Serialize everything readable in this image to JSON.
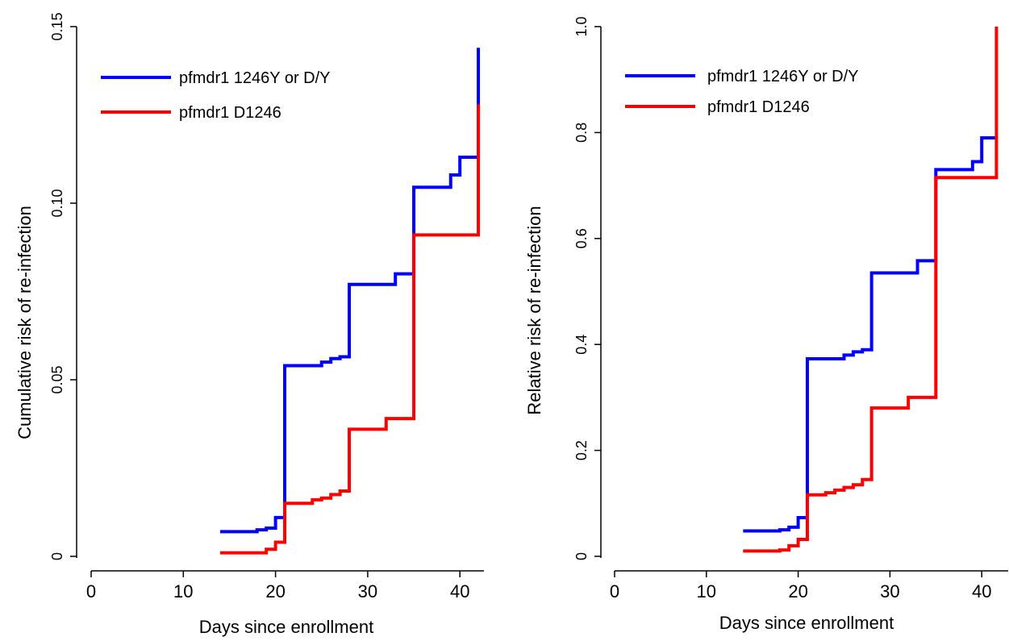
{
  "chart_data": [
    {
      "type": "line",
      "step": true,
      "xlabel": "Days since enrollment",
      "ylabel": "Cumulative risk of re-infection",
      "xlim": [
        0,
        42
      ],
      "ylim": [
        0,
        0.15
      ],
      "xticks": [
        0,
        10,
        20,
        30,
        40
      ],
      "yticks": [
        0,
        0.05,
        0.1,
        0.15
      ],
      "xtick_labels": [
        "0",
        "10",
        "20",
        "30",
        "40"
      ],
      "ytick_labels": [
        "0",
        "0.05",
        "0.10",
        "0.15"
      ],
      "grid": false,
      "legend_position": "top-left",
      "series": [
        {
          "name": "pfmdr1 1246Y or D/Y",
          "color": "#0000ff",
          "x": [
            14,
            18,
            19,
            20,
            21,
            25,
            26,
            27,
            28,
            33,
            35,
            39,
            40,
            42,
            42
          ],
          "y": [
            0.007,
            0.0075,
            0.008,
            0.011,
            0.054,
            0.055,
            0.056,
            0.0565,
            0.077,
            0.08,
            0.1045,
            0.108,
            0.113,
            0.113,
            0.144
          ]
        },
        {
          "name": "pfmdr1 D1246",
          "color": "#ff0000",
          "x": [
            14,
            19,
            20,
            21,
            24,
            25,
            26,
            27,
            28,
            32,
            35,
            42,
            42
          ],
          "y": [
            0.001,
            0.002,
            0.004,
            0.015,
            0.016,
            0.0165,
            0.0175,
            0.0185,
            0.036,
            0.039,
            0.091,
            0.091,
            0.128
          ]
        }
      ]
    },
    {
      "type": "line",
      "step": true,
      "xlabel": "Days since enrollment",
      "ylabel": "Relative risk of re-infection",
      "xlim": [
        0,
        42
      ],
      "ylim": [
        0,
        1.0
      ],
      "xticks": [
        0,
        10,
        20,
        30,
        40
      ],
      "yticks": [
        0,
        0.2,
        0.4,
        0.6,
        0.8,
        1.0
      ],
      "xtick_labels": [
        "0",
        "10",
        "20",
        "30",
        "40"
      ],
      "ytick_labels": [
        "0",
        "0.2",
        "0.4",
        "0.6",
        "0.8",
        "1.0"
      ],
      "grid": false,
      "legend_position": "top-left",
      "series": [
        {
          "name": "pfmdr1 1246Y or D/Y",
          "color": "#0000ff",
          "x": [
            14,
            18,
            19,
            20,
            21,
            25,
            26,
            27,
            28,
            33,
            35,
            39,
            40,
            41.6
          ],
          "y": [
            0.048,
            0.05,
            0.055,
            0.073,
            0.373,
            0.38,
            0.386,
            0.39,
            0.535,
            0.558,
            0.73,
            0.745,
            0.79,
            0.79
          ]
        },
        {
          "name": "pfmdr1 D1246",
          "color": "#ff0000",
          "x": [
            14,
            18,
            19,
            20,
            21,
            23,
            24,
            25,
            26,
            27,
            28,
            32,
            35,
            41.6,
            41.6
          ],
          "y": [
            0.01,
            0.012,
            0.02,
            0.032,
            0.116,
            0.12,
            0.125,
            0.13,
            0.135,
            0.145,
            0.28,
            0.3,
            0.715,
            0.715,
            1.0
          ]
        }
      ]
    }
  ]
}
